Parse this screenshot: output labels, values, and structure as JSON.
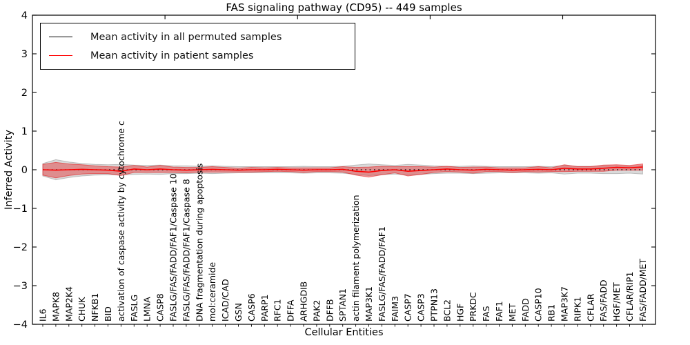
{
  "figure": {
    "title": "FAS signaling pathway (CD95) -- 449 samples",
    "xlabel": "Cellular Entities",
    "ylabel": "Inferred Activity"
  },
  "legend": {
    "entries": [
      {
        "label": "Mean activity in all permuted samples",
        "color": "#000000"
      },
      {
        "label": "Mean activity in patient samples",
        "color": "#ff0000"
      }
    ]
  },
  "chart_data": {
    "type": "line",
    "title": "FAS signaling pathway (CD95) -- 449 samples",
    "xlabel": "Cellular Entities",
    "ylabel": "Inferred Activity",
    "ylim": [
      -4,
      4
    ],
    "yticks": [
      4,
      3,
      2,
      1,
      0,
      -1,
      -2,
      -3,
      -4
    ],
    "grid": false,
    "legend_position": "upper left",
    "categories": [
      "IL6",
      "MAPK8",
      "MAP2K4",
      "CHUK",
      "NFKB1",
      "BID",
      "activation of caspase activity by cytochrome c",
      "FASLG",
      "LMNA",
      "CASP8",
      "FASLG/FAS/FADD/FAF1/Caspase 10",
      "FASLG/FAS/FADD/FAF1/Caspase 8",
      "DNA fragmentation during apoptosis",
      "mol:ceramide",
      "ICAD/CAD",
      "GSN",
      "CASP6",
      "PARP1",
      "RFC1",
      "DFFA",
      "ARHGDIB",
      "PAK2",
      "DFFB",
      "SPTAN1",
      "actin filament polymerization",
      "MAP3K1",
      "FASLG/FAS/FADD/FAF1",
      "FAIM3",
      "CASP7",
      "CASP3",
      "PTPN13",
      "BCL2",
      "HGF",
      "PRKDC",
      "FAS",
      "FAF1",
      "MET",
      "FADD",
      "CASP10",
      "RB1",
      "MAP3K7",
      "RIPK1",
      "CFLAR",
      "FAS/FADD",
      "HGF/MET",
      "CFLAR/RIP1",
      "FAS/FADD/MET"
    ],
    "series": [
      {
        "name": "Mean activity in all permuted samples",
        "color": "#000000",
        "line_style": "dotted",
        "band_color": "#8c8c8c",
        "band_opacity": 0.32,
        "values": [
          0,
          0,
          0,
          0,
          0,
          0,
          0,
          0,
          0,
          0,
          0,
          0,
          0,
          0,
          0,
          0,
          0,
          0,
          0,
          0,
          0,
          0,
          0,
          0,
          0,
          0,
          0,
          0,
          0,
          0,
          0,
          0,
          0,
          0,
          0,
          0,
          0,
          0,
          0,
          0,
          0,
          0,
          0,
          0,
          0,
          0,
          0
        ],
        "band_halfwidth": [
          0.16,
          0.26,
          0.2,
          0.16,
          0.14,
          0.13,
          0.14,
          0.12,
          0.11,
          0.12,
          0.1,
          0.1,
          0.09,
          0.1,
          0.09,
          0.08,
          0.08,
          0.08,
          0.08,
          0.08,
          0.09,
          0.08,
          0.08,
          0.09,
          0.12,
          0.15,
          0.13,
          0.11,
          0.14,
          0.12,
          0.1,
          0.09,
          0.09,
          0.1,
          0.09,
          0.08,
          0.08,
          0.08,
          0.09,
          0.08,
          0.11,
          0.09,
          0.09,
          0.1,
          0.1,
          0.09,
          0.11
        ]
      },
      {
        "name": "Mean activity in patient samples",
        "color": "#ff0000",
        "line_style": "solid",
        "band_color": "#e41a1c",
        "band_opacity": 0.4,
        "values": [
          0,
          -0.01,
          0,
          0.01,
          0,
          -0.01,
          -0.04,
          0.02,
          0,
          0.02,
          0,
          -0.01,
          0,
          0.01,
          0,
          -0.01,
          0,
          0,
          0.01,
          0,
          -0.01,
          0,
          0,
          0.01,
          -0.04,
          -0.06,
          -0.02,
          0,
          -0.04,
          -0.02,
          0,
          0.02,
          0,
          -0.01,
          0.01,
          0,
          -0.01,
          0,
          0.01,
          0,
          0.04,
          0.02,
          0.02,
          0.04,
          0.06,
          0.05,
          0.07
        ],
        "band_halfwidth": [
          0.14,
          0.2,
          0.15,
          0.12,
          0.1,
          0.09,
          0.11,
          0.09,
          0.07,
          0.09,
          0.07,
          0.07,
          0.06,
          0.07,
          0.06,
          0.05,
          0.06,
          0.05,
          0.05,
          0.05,
          0.06,
          0.05,
          0.05,
          0.07,
          0.1,
          0.13,
          0.11,
          0.08,
          0.12,
          0.1,
          0.07,
          0.07,
          0.06,
          0.08,
          0.06,
          0.05,
          0.06,
          0.05,
          0.07,
          0.05,
          0.09,
          0.06,
          0.06,
          0.08,
          0.07,
          0.06,
          0.08
        ]
      }
    ]
  }
}
